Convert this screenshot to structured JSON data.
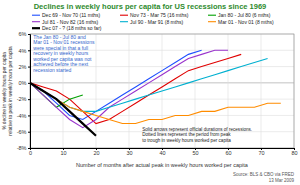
{
  "chart_data": {
    "type": "line",
    "title": "Declines in weekly hours per capita for US recessions since 1969",
    "x_label": "Number of months after actual peak in weekly hours worked per capita",
    "y_label": [
      "% decline in weekly hours per capita",
      "relative to peak in weekly hours per capita"
    ],
    "source": "Source: BLS & CBO via FRED",
    "date": "13 Mar 2009",
    "annotations": [
      [
        "Solid arrows represent official durations of recessions.",
        "Dotted lines represent the period from peak",
        "to trough in weekly hours worked per capita"
      ],
      [
        "The Jan 80 - Jul 80 and",
        "Mar 01 - Nov 01 recessions",
        "were special in that a full",
        "recovery in weekly hours",
        "worked per capita was not",
        "achieved before the next",
        "recession started"
      ]
    ],
    "grid": true,
    "xlim": [
      0,
      80
    ],
    "xticks": [
      0,
      10,
      20,
      30,
      40,
      50,
      60,
      70,
      80
    ],
    "ylim": [
      -8,
      6
    ],
    "yticks": [
      {
        "value": -8,
        "label": "-8%"
      },
      {
        "value": -6,
        "label": "-6%"
      },
      {
        "value": -4,
        "label": "-4%"
      },
      {
        "value": -2,
        "label": "-2%"
      },
      {
        "value": 0,
        "label": "0%"
      },
      {
        "value": 2,
        "label": "2%"
      },
      {
        "value": 4,
        "label": "4%"
      },
      {
        "value": 6,
        "label": "6%"
      }
    ],
    "x": [
      0,
      4,
      8,
      12,
      16,
      20,
      24,
      28,
      32,
      36,
      40,
      44,
      48,
      52,
      56,
      60,
      64,
      68,
      72,
      76,
      80
    ],
    "series": [
      {
        "name": "Dec 69 - Nov 70 (11 mths)",
        "color": "#1f4fff",
        "line_style": "solid",
        "values": [
          0,
          -1,
          -2.5,
          -4,
          -4.5,
          -3.5,
          -2.5,
          -1.5,
          -0.5,
          0.5,
          1.5,
          2.5,
          3.5,
          4,
          null,
          null,
          null,
          null,
          null,
          null,
          null
        ]
      },
      {
        "name": "Nov 73 - Mar 75 (16 mths)",
        "color": "#e00000",
        "line_style": "solid",
        "values": [
          0,
          -0.5,
          -1,
          -2,
          -3.5,
          -5,
          -4.5,
          -3.5,
          -2.5,
          -1.5,
          -0.5,
          0.5,
          1.5,
          2,
          2.5,
          3,
          3.5,
          null,
          null,
          null,
          null
        ]
      },
      {
        "name": "Jan 80 - Jul 80 (6 mths)",
        "color": "#00a000",
        "line_style": "solid",
        "values": [
          0,
          -1.5,
          -3,
          -2,
          -1.5,
          null,
          null,
          null,
          null,
          null,
          null,
          null,
          null,
          null,
          null,
          null,
          null,
          null,
          null,
          null,
          null
        ]
      },
      {
        "name": "Jul 81 - Nov 82 (16 mths)",
        "color": "#9933cc",
        "line_style": "solid",
        "values": [
          0,
          -1.5,
          -3,
          -4.5,
          -5.5,
          -4.5,
          -3,
          -2,
          -1,
          0,
          1,
          2,
          3,
          3.5,
          4,
          4,
          null,
          null,
          null,
          null,
          null
        ]
      },
      {
        "name": "Jul 90 - Mar 91 (8 mths)",
        "color": "#00b0d0",
        "line_style": "solid",
        "values": [
          0,
          -1,
          -2,
          -3,
          -3.5,
          -3.5,
          -3,
          -2.5,
          -2,
          -1.5,
          -1,
          -0.5,
          0,
          0.5,
          1,
          1.5,
          2,
          2.5,
          3,
          null,
          null
        ]
      },
      {
        "name": "Mar 01 - Nov 01 (8 mths)",
        "color": "#ff8c00",
        "line_style": "solid",
        "values": [
          0,
          -1,
          -2,
          -3,
          -3.5,
          -4,
          -4.5,
          -5,
          -5,
          -4.5,
          -4.5,
          -4,
          -4,
          -3.5,
          -3.5,
          -3,
          -3,
          -3,
          -2.5,
          -2.5,
          null
        ]
      },
      {
        "name": "Dec 07 - ? (18 mths so far)",
        "color": "#000000",
        "line_style": "thick",
        "values": [
          0,
          -1,
          -2,
          -3.5,
          -5,
          -6.5,
          null,
          null,
          null,
          null,
          null,
          null,
          null,
          null,
          null,
          null,
          null,
          null,
          null,
          null,
          null
        ]
      }
    ]
  }
}
